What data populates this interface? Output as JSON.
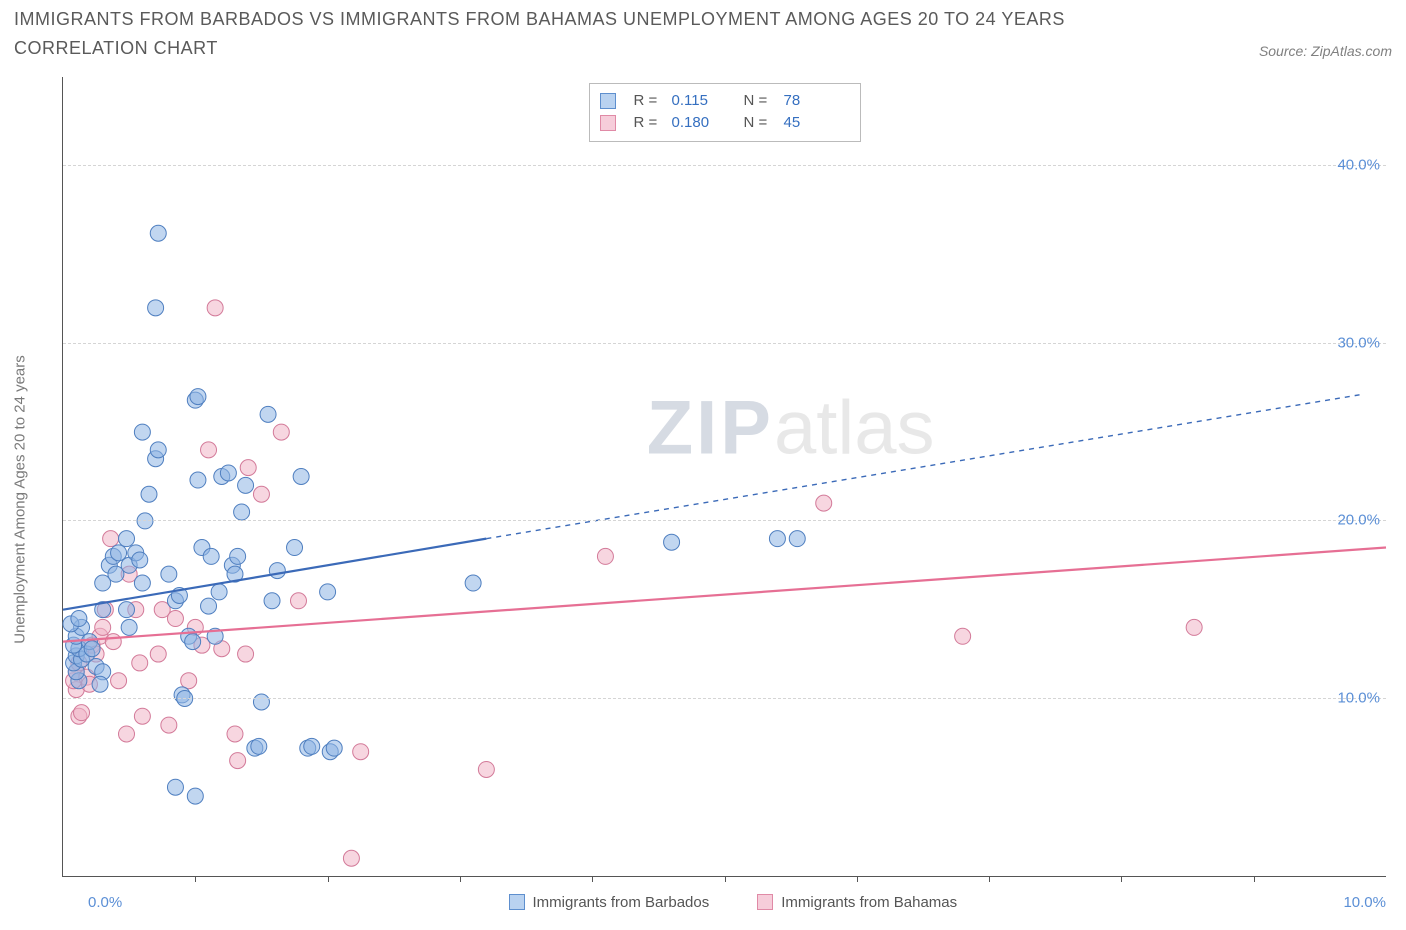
{
  "title": "IMMIGRANTS FROM BARBADOS VS IMMIGRANTS FROM BAHAMAS UNEMPLOYMENT AMONG AGES 20 TO 24 YEARS CORRELATION CHART",
  "source": "Source: ZipAtlas.com",
  "yaxis_label": "Unemployment Among Ages 20 to 24 years",
  "watermark_zip": "ZIP",
  "watermark_atlas": "atlas",
  "chart": {
    "type": "scatter",
    "background_color": "#ffffff",
    "grid_color": "#d5d5d5",
    "axis_color": "#555555",
    "tick_label_color": "#5b8fd6",
    "xlim": [
      0,
      10
    ],
    "ylim": [
      0,
      45
    ],
    "yticks": [
      10,
      20,
      30,
      40
    ],
    "ytick_labels": [
      "10.0%",
      "20.0%",
      "30.0%",
      "40.0%"
    ],
    "xticks": [
      1,
      2,
      3,
      4,
      5,
      6,
      7,
      8,
      9
    ],
    "xmin_label": "0.0%",
    "xmax_label": "10.0%",
    "marker_radius": 8,
    "marker_opacity": 0.55,
    "trendline_width": 2.2
  },
  "stats_box": {
    "rows": [
      {
        "swatch_fill": "#b9d2f0",
        "swatch_border": "#5e8fce",
        "r_label": "R =",
        "r": "0.115",
        "n_label": "N =",
        "n": "78"
      },
      {
        "swatch_fill": "#f6cdda",
        "swatch_border": "#e08aa6",
        "r_label": "R =",
        "r": "0.180",
        "n_label": "N =",
        "n": "45"
      }
    ]
  },
  "legend": [
    {
      "label": "Immigrants from Barbados",
      "swatch_fill": "#b9d2f0",
      "swatch_border": "#5e8fce"
    },
    {
      "label": "Immigrants from Bahamas",
      "swatch_fill": "#f6cdda",
      "swatch_border": "#e08aa6"
    }
  ],
  "series": {
    "barbados": {
      "fill": "#8eb4e3",
      "stroke": "#4f7fc0",
      "trend_color": "#3b6ab8",
      "trend_solid": {
        "x1": 0,
        "y1": 15.0,
        "x2": 3.2,
        "y2": 19.0
      },
      "trend_dash": {
        "x1": 3.2,
        "y1": 19.0,
        "x2": 9.8,
        "y2": 27.1
      },
      "points": [
        [
          0.12,
          11.0
        ],
        [
          0.1,
          11.5
        ],
        [
          0.08,
          12.0
        ],
        [
          0.1,
          12.4
        ],
        [
          0.14,
          12.2
        ],
        [
          0.12,
          12.8
        ],
        [
          0.18,
          12.5
        ],
        [
          0.08,
          13.0
        ],
        [
          0.1,
          13.5
        ],
        [
          0.14,
          14.0
        ],
        [
          0.06,
          14.2
        ],
        [
          0.12,
          14.5
        ],
        [
          0.2,
          13.2
        ],
        [
          0.22,
          12.8
        ],
        [
          0.25,
          11.8
        ],
        [
          0.3,
          11.5
        ],
        [
          0.28,
          10.8
        ],
        [
          0.3,
          16.5
        ],
        [
          0.35,
          17.5
        ],
        [
          0.38,
          18.0
        ],
        [
          0.4,
          17.0
        ],
        [
          0.42,
          18.2
        ],
        [
          0.48,
          15.0
        ],
        [
          0.5,
          17.5
        ],
        [
          0.55,
          18.2
        ],
        [
          0.58,
          17.8
        ],
        [
          0.6,
          16.5
        ],
        [
          0.62,
          20.0
        ],
        [
          0.65,
          21.5
        ],
        [
          0.7,
          23.5
        ],
        [
          0.72,
          24.0
        ],
        [
          0.8,
          17.0
        ],
        [
          0.85,
          15.5
        ],
        [
          0.88,
          15.8
        ],
        [
          0.9,
          10.2
        ],
        [
          0.92,
          10.0
        ],
        [
          0.95,
          13.5
        ],
        [
          0.98,
          13.2
        ],
        [
          1.0,
          26.8
        ],
        [
          1.02,
          27.0
        ],
        [
          1.05,
          18.5
        ],
        [
          1.1,
          15.2
        ],
        [
          1.12,
          18.0
        ],
        [
          1.15,
          13.5
        ],
        [
          1.18,
          16.0
        ],
        [
          1.2,
          22.5
        ],
        [
          1.25,
          22.7
        ],
        [
          1.28,
          17.5
        ],
        [
          1.3,
          17.0
        ],
        [
          1.32,
          18.0
        ],
        [
          1.35,
          20.5
        ],
        [
          1.38,
          22.0
        ],
        [
          1.45,
          7.2
        ],
        [
          1.48,
          7.3
        ],
        [
          1.5,
          9.8
        ],
        [
          1.55,
          26.0
        ],
        [
          1.58,
          15.5
        ],
        [
          1.62,
          17.2
        ],
        [
          1.75,
          18.5
        ],
        [
          1.8,
          22.5
        ],
        [
          1.85,
          7.2
        ],
        [
          1.88,
          7.3
        ],
        [
          2.0,
          16.0
        ],
        [
          2.02,
          7.0
        ],
        [
          2.05,
          7.2
        ],
        [
          4.6,
          18.8
        ],
        [
          5.4,
          19.0
        ],
        [
          5.55,
          19.0
        ],
        [
          0.6,
          25.0
        ],
        [
          0.7,
          32.0
        ],
        [
          0.72,
          36.2
        ],
        [
          0.5,
          14.0
        ],
        [
          0.85,
          5.0
        ],
        [
          3.1,
          16.5
        ],
        [
          1.0,
          4.5
        ],
        [
          0.48,
          19.0
        ],
        [
          0.3,
          15.0
        ],
        [
          1.02,
          22.3
        ]
      ]
    },
    "bahamas": {
      "fill": "#f1b4c7",
      "stroke": "#d37a99",
      "trend_color": "#e66f94",
      "trend_solid": {
        "x1": 0,
        "y1": 13.2,
        "x2": 10.0,
        "y2": 18.5
      },
      "points": [
        [
          0.1,
          10.5
        ],
        [
          0.12,
          9.0
        ],
        [
          0.14,
          9.2
        ],
        [
          0.08,
          11.0
        ],
        [
          0.1,
          11.5
        ],
        [
          0.12,
          12.0
        ],
        [
          0.18,
          11.2
        ],
        [
          0.2,
          10.8
        ],
        [
          0.22,
          13.0
        ],
        [
          0.25,
          12.5
        ],
        [
          0.28,
          13.5
        ],
        [
          0.3,
          14.0
        ],
        [
          0.32,
          15.0
        ],
        [
          0.36,
          19.0
        ],
        [
          0.38,
          13.2
        ],
        [
          0.42,
          11.0
        ],
        [
          0.48,
          8.0
        ],
        [
          0.5,
          17.0
        ],
        [
          0.55,
          15.0
        ],
        [
          0.58,
          12.0
        ],
        [
          0.6,
          9.0
        ],
        [
          0.72,
          12.5
        ],
        [
          0.75,
          15.0
        ],
        [
          0.8,
          8.5
        ],
        [
          0.85,
          14.5
        ],
        [
          0.95,
          11.0
        ],
        [
          1.0,
          14.0
        ],
        [
          1.05,
          13.0
        ],
        [
          1.1,
          24.0
        ],
        [
          1.15,
          32.0
        ],
        [
          1.2,
          12.8
        ],
        [
          1.3,
          8.0
        ],
        [
          1.32,
          6.5
        ],
        [
          1.38,
          12.5
        ],
        [
          1.4,
          23.0
        ],
        [
          1.5,
          21.5
        ],
        [
          1.65,
          25.0
        ],
        [
          1.78,
          15.5
        ],
        [
          2.18,
          1.0
        ],
        [
          2.25,
          7.0
        ],
        [
          3.2,
          6.0
        ],
        [
          4.1,
          18.0
        ],
        [
          5.75,
          21.0
        ],
        [
          6.8,
          13.5
        ],
        [
          8.55,
          14.0
        ]
      ]
    }
  }
}
